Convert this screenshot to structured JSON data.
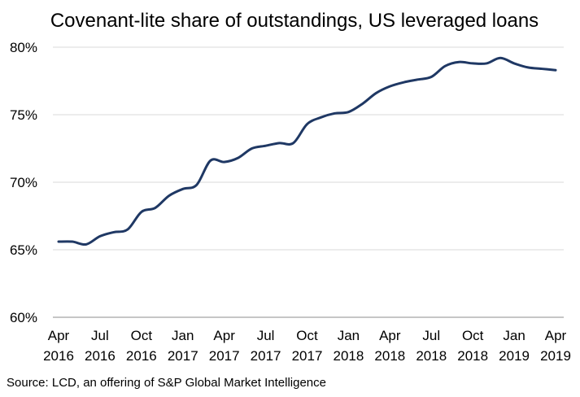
{
  "chart_data": {
    "type": "line",
    "title": "Covenant-lite share of outstandings, US leveraged loans",
    "xlabel": "",
    "ylabel": "",
    "source": "Source: LCD, an offering of S&P Global Market Intelligence",
    "ylim": [
      60,
      80
    ],
    "yticks": [
      60,
      65,
      70,
      75,
      80
    ],
    "ytick_labels": [
      "60%",
      "65%",
      "70%",
      "75%",
      "80%"
    ],
    "grid": true,
    "legend": "none",
    "line_color": "#1F3864",
    "month_count": 37,
    "x_ticks": [
      {
        "month_index": 0,
        "line1": "Apr",
        "line2": "2016"
      },
      {
        "month_index": 3,
        "line1": "Jul",
        "line2": "2016"
      },
      {
        "month_index": 6,
        "line1": "Oct",
        "line2": "2016"
      },
      {
        "month_index": 9,
        "line1": "Jan",
        "line2": "2017"
      },
      {
        "month_index": 12,
        "line1": "Apr",
        "line2": "2017"
      },
      {
        "month_index": 15,
        "line1": "Jul",
        "line2": "2017"
      },
      {
        "month_index": 18,
        "line1": "Oct",
        "line2": "2017"
      },
      {
        "month_index": 21,
        "line1": "Jan",
        "line2": "2018"
      },
      {
        "month_index": 24,
        "line1": "Apr",
        "line2": "2018"
      },
      {
        "month_index": 27,
        "line1": "Jul",
        "line2": "2018"
      },
      {
        "month_index": 30,
        "line1": "Oct",
        "line2": "2018"
      },
      {
        "month_index": 33,
        "line1": "Jan",
        "line2": "2019"
      },
      {
        "month_index": 36,
        "line1": "Apr",
        "line2": "2019"
      }
    ],
    "series": [
      {
        "name": "Covenant-lite share of outstandings",
        "values": [
          65.6,
          65.6,
          65.4,
          66.0,
          66.3,
          66.5,
          67.8,
          68.1,
          69.0,
          69.5,
          69.8,
          71.6,
          71.5,
          71.8,
          72.5,
          72.7,
          72.9,
          72.9,
          74.3,
          74.8,
          75.1,
          75.2,
          75.8,
          76.6,
          77.1,
          77.4,
          77.6,
          77.8,
          78.6,
          78.9,
          78.8,
          78.8,
          79.2,
          78.8,
          78.5,
          78.4,
          78.3
        ]
      }
    ]
  }
}
